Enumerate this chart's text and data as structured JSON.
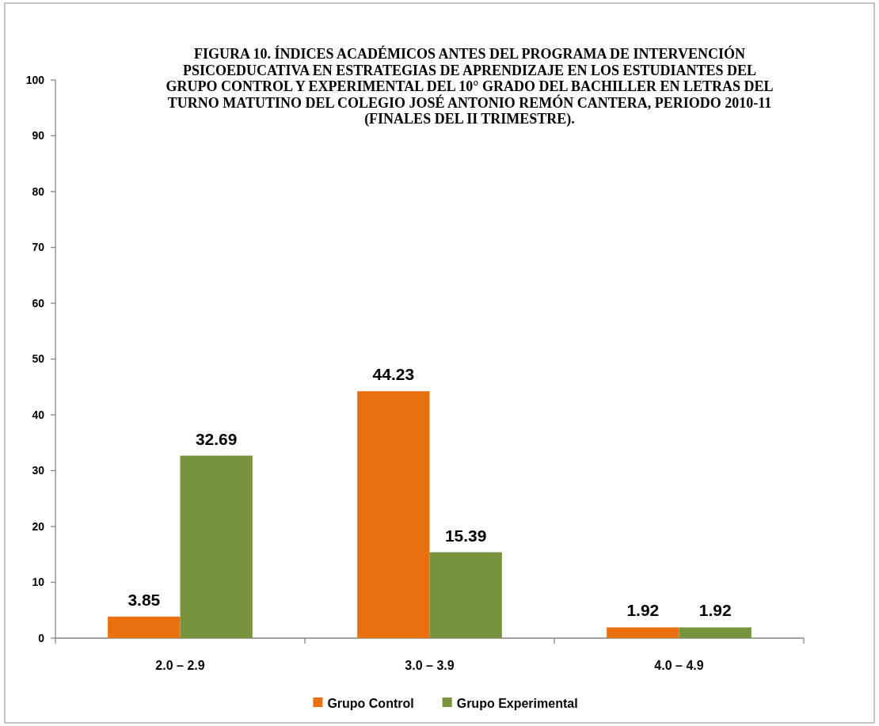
{
  "chart_data": {
    "type": "bar",
    "title": "FIGURA 10. ÍNDICES ACADÉMICOS ANTES DEL PROGRAMA DE INTERVENCIÓN\nPSICOEDUCATIVA EN ESTRATEGIAS DE APRENDIZAJE EN LOS ESTUDIANTES DEL\nGRUPO CONTROL Y EXPERIMENTAL DEL 10° GRADO DEL BACHILLER EN LETRAS DEL\nTURNO MATUTINO DEL COLEGIO JOSÉ ANTONIO REMÓN CANTERA, PERIODO 2010-11\n(FINALES DEL II TRIMESTRE).",
    "categories": [
      "2.0 – 2.9",
      "3.0 – 3.9",
      "4.0 – 4.9"
    ],
    "series": [
      {
        "name": "Grupo Control",
        "color": "#e8700e",
        "values": [
          3.85,
          44.23,
          1.92
        ]
      },
      {
        "name": "Grupo Experimental",
        "color": "#77933c",
        "values": [
          32.69,
          15.39,
          1.92
        ]
      }
    ],
    "ylim": [
      0,
      100
    ],
    "yticks": [
      0,
      10,
      20,
      30,
      40,
      50,
      60,
      70,
      80,
      90,
      100
    ],
    "legend": "bottom",
    "data_labels": true
  }
}
